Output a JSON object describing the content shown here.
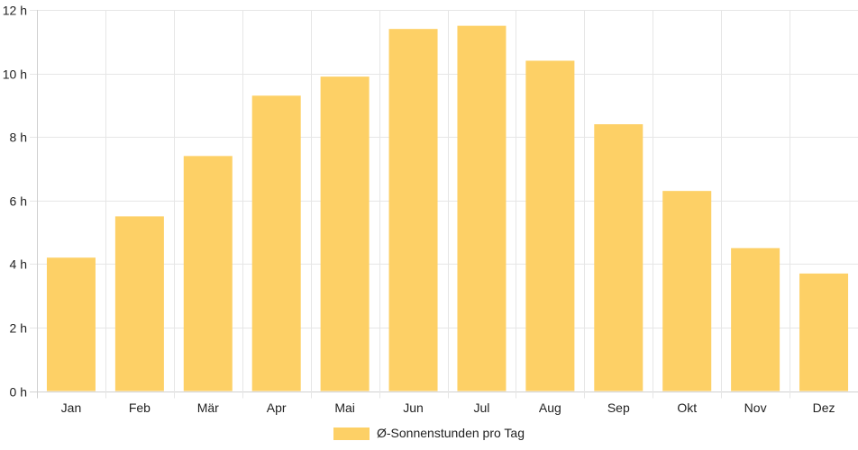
{
  "chart_data": {
    "type": "bar",
    "categories": [
      "Jan",
      "Feb",
      "Mär",
      "Apr",
      "Mai",
      "Jun",
      "Jul",
      "Aug",
      "Sep",
      "Okt",
      "Nov",
      "Dez"
    ],
    "series": [
      {
        "name": "Ø-Sonnenstunden pro Tag",
        "values": [
          4.2,
          5.5,
          7.4,
          9.3,
          9.9,
          11.4,
          11.5,
          10.4,
          8.4,
          6.3,
          4.5,
          3.7
        ],
        "color": "#fdd066"
      }
    ],
    "y_ticks": [
      "0 h",
      "2 h",
      "4 h",
      "6 h",
      "8 h",
      "10 h",
      "12 h"
    ],
    "ylim": [
      0,
      12
    ],
    "grid": true,
    "legend_position": "bottom"
  }
}
